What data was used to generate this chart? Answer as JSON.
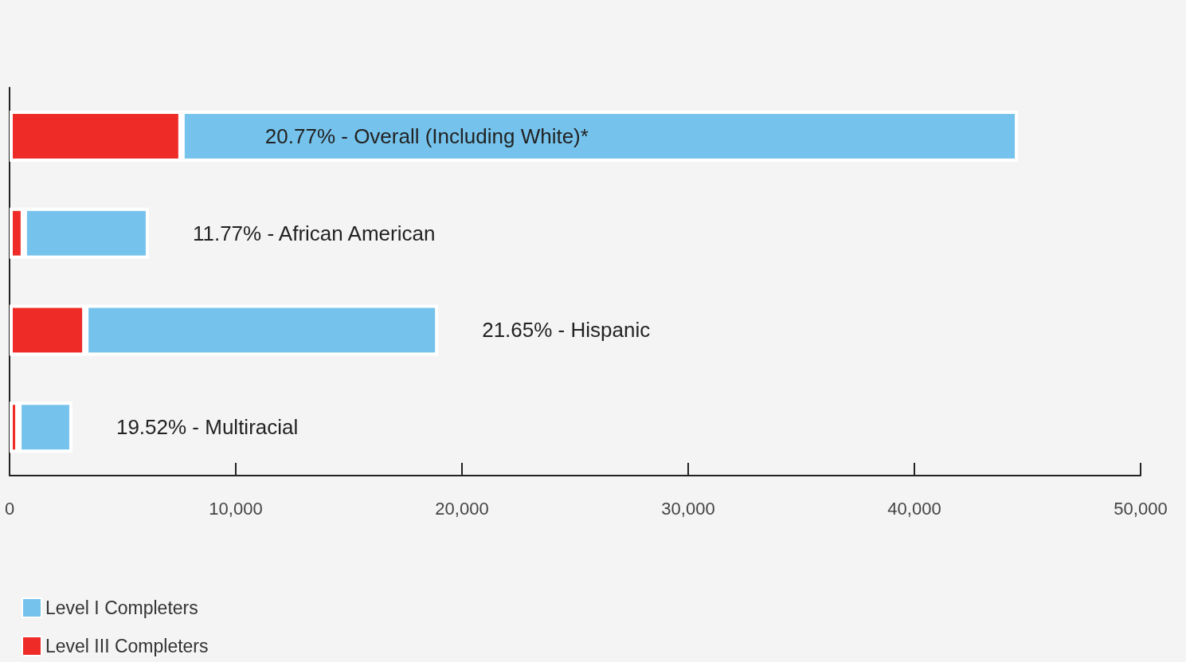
{
  "chart_data": {
    "type": "bar",
    "orientation": "horizontal",
    "stacked": true,
    "categories": [
      "20.77% - Overall (Including White)*",
      "11.77% - African American",
      "21.65% - Hispanic",
      "19.52% - Multiracial"
    ],
    "series": [
      {
        "name": "Level III Completers",
        "color": "#ee2b27",
        "values": [
          7600,
          630,
          3350,
          390
        ]
      },
      {
        "name": "Level I Completers",
        "color": "#75c3ec",
        "values": [
          36980,
          5530,
          15600,
          2390
        ]
      }
    ],
    "xlim": [
      0,
      50000
    ],
    "xticks": [
      {
        "value": 0,
        "label": "0"
      },
      {
        "value": 10000,
        "label": "10,000"
      },
      {
        "value": 20000,
        "label": "20,000"
      },
      {
        "value": 30000,
        "label": "30,000"
      },
      {
        "value": 40000,
        "label": "40,000"
      },
      {
        "value": 50000,
        "label": "50,000"
      }
    ],
    "grid": false,
    "legend": "bottom left"
  }
}
